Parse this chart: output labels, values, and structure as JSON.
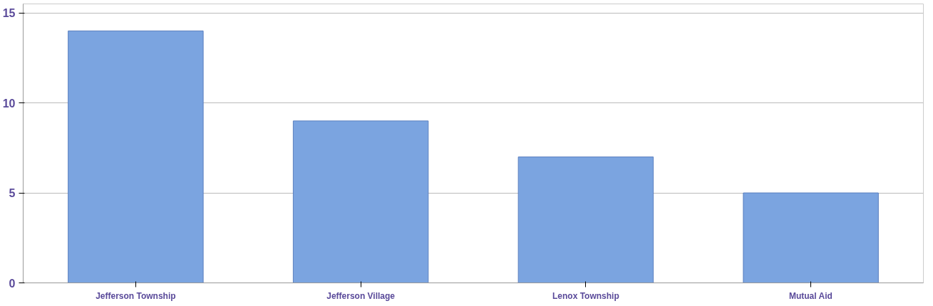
{
  "chart_data": {
    "type": "bar",
    "categories": [
      "Jefferson Township",
      "Jefferson Village",
      "Lenox Township",
      "Mutual Aid"
    ],
    "values": [
      14,
      9,
      7,
      5
    ],
    "color": "#7ba4e0",
    "ylim": [
      0,
      15.5
    ],
    "yticks": [
      0,
      5,
      10,
      15
    ],
    "grid": "y"
  }
}
